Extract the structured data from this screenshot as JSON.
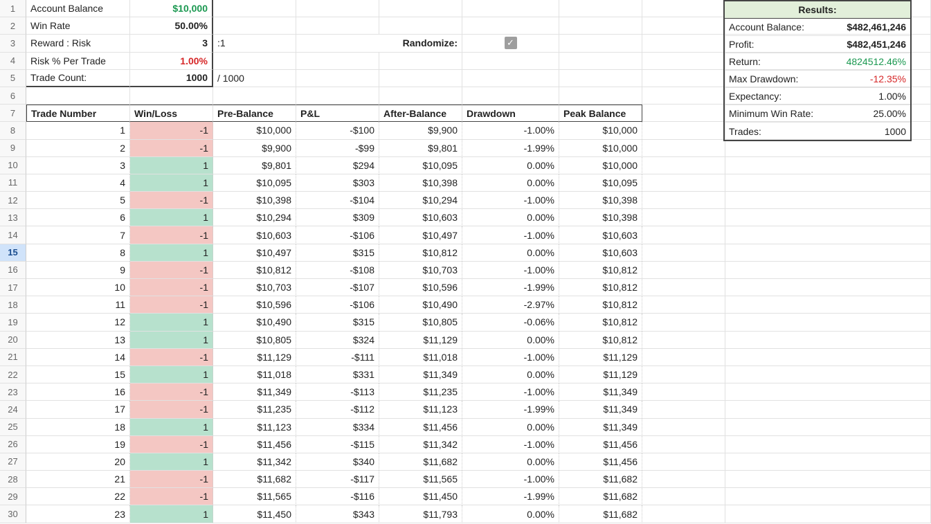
{
  "colors": {
    "win_bg": "#b7e1cd",
    "loss_bg": "#f4c7c3",
    "green_text": "#1a9850",
    "red_text": "#d62728",
    "results_header_bg": "#e2efda",
    "grid_border": "#e1e1e1",
    "strong_border": "#444444",
    "rowhead_bg": "#f8f8f8",
    "selected_row_bg": "#d0e3fa"
  },
  "params": {
    "rows": [
      {
        "n": 1,
        "label": "Account Balance",
        "value": "$10,000",
        "value_color": "green",
        "bold": true
      },
      {
        "n": 2,
        "label": "Win Rate",
        "value": "50.00%",
        "bold": true
      },
      {
        "n": 3,
        "label": "Reward : Risk",
        "value": "3",
        "suffix": ":1",
        "bold": true
      },
      {
        "n": 4,
        "label": "Risk % Per Trade",
        "value": "1.00%",
        "value_color": "red",
        "bold": true
      },
      {
        "n": 5,
        "label": "Trade Count:",
        "value": "1000",
        "suffix": "/ 1000",
        "bold": true
      }
    ],
    "randomize_label": "Randomize:",
    "randomize_checked": true
  },
  "blank_row": 6,
  "table": {
    "header_row": 7,
    "columns": [
      "Trade Number",
      "Win/Loss",
      "Pre-Balance",
      "P&L",
      "After-Balance",
      "Drawdown",
      "Peak Balance"
    ],
    "selected_sheet_row": 15,
    "rows": [
      {
        "sr": 8,
        "n": 1,
        "wl": -1,
        "pre": "$10,000",
        "pl": "-$100",
        "after": "$9,900",
        "dd": "-1.00%",
        "peak": "$10,000"
      },
      {
        "sr": 9,
        "n": 2,
        "wl": -1,
        "pre": "$9,900",
        "pl": "-$99",
        "after": "$9,801",
        "dd": "-1.99%",
        "peak": "$10,000"
      },
      {
        "sr": 10,
        "n": 3,
        "wl": 1,
        "pre": "$9,801",
        "pl": "$294",
        "after": "$10,095",
        "dd": "0.00%",
        "peak": "$10,000"
      },
      {
        "sr": 11,
        "n": 4,
        "wl": 1,
        "pre": "$10,095",
        "pl": "$303",
        "after": "$10,398",
        "dd": "0.00%",
        "peak": "$10,095"
      },
      {
        "sr": 12,
        "n": 5,
        "wl": -1,
        "pre": "$10,398",
        "pl": "-$104",
        "after": "$10,294",
        "dd": "-1.00%",
        "peak": "$10,398"
      },
      {
        "sr": 13,
        "n": 6,
        "wl": 1,
        "pre": "$10,294",
        "pl": "$309",
        "after": "$10,603",
        "dd": "0.00%",
        "peak": "$10,398"
      },
      {
        "sr": 14,
        "n": 7,
        "wl": -1,
        "pre": "$10,603",
        "pl": "-$106",
        "after": "$10,497",
        "dd": "-1.00%",
        "peak": "$10,603"
      },
      {
        "sr": 15,
        "n": 8,
        "wl": 1,
        "pre": "$10,497",
        "pl": "$315",
        "after": "$10,812",
        "dd": "0.00%",
        "peak": "$10,603"
      },
      {
        "sr": 16,
        "n": 9,
        "wl": -1,
        "pre": "$10,812",
        "pl": "-$108",
        "after": "$10,703",
        "dd": "-1.00%",
        "peak": "$10,812"
      },
      {
        "sr": 17,
        "n": 10,
        "wl": -1,
        "pre": "$10,703",
        "pl": "-$107",
        "after": "$10,596",
        "dd": "-1.99%",
        "peak": "$10,812"
      },
      {
        "sr": 18,
        "n": 11,
        "wl": -1,
        "pre": "$10,596",
        "pl": "-$106",
        "after": "$10,490",
        "dd": "-2.97%",
        "peak": "$10,812"
      },
      {
        "sr": 19,
        "n": 12,
        "wl": 1,
        "pre": "$10,490",
        "pl": "$315",
        "after": "$10,805",
        "dd": "-0.06%",
        "peak": "$10,812"
      },
      {
        "sr": 20,
        "n": 13,
        "wl": 1,
        "pre": "$10,805",
        "pl": "$324",
        "after": "$11,129",
        "dd": "0.00%",
        "peak": "$10,812"
      },
      {
        "sr": 21,
        "n": 14,
        "wl": -1,
        "pre": "$11,129",
        "pl": "-$111",
        "after": "$11,018",
        "dd": "-1.00%",
        "peak": "$11,129"
      },
      {
        "sr": 22,
        "n": 15,
        "wl": 1,
        "pre": "$11,018",
        "pl": "$331",
        "after": "$11,349",
        "dd": "0.00%",
        "peak": "$11,129"
      },
      {
        "sr": 23,
        "n": 16,
        "wl": -1,
        "pre": "$11,349",
        "pl": "-$113",
        "after": "$11,235",
        "dd": "-1.00%",
        "peak": "$11,349"
      },
      {
        "sr": 24,
        "n": 17,
        "wl": -1,
        "pre": "$11,235",
        "pl": "-$112",
        "after": "$11,123",
        "dd": "-1.99%",
        "peak": "$11,349"
      },
      {
        "sr": 25,
        "n": 18,
        "wl": 1,
        "pre": "$11,123",
        "pl": "$334",
        "after": "$11,456",
        "dd": "0.00%",
        "peak": "$11,349"
      },
      {
        "sr": 26,
        "n": 19,
        "wl": -1,
        "pre": "$11,456",
        "pl": "-$115",
        "after": "$11,342",
        "dd": "-1.00%",
        "peak": "$11,456"
      },
      {
        "sr": 27,
        "n": 20,
        "wl": 1,
        "pre": "$11,342",
        "pl": "$340",
        "after": "$11,682",
        "dd": "0.00%",
        "peak": "$11,456"
      },
      {
        "sr": 28,
        "n": 21,
        "wl": -1,
        "pre": "$11,682",
        "pl": "-$117",
        "after": "$11,565",
        "dd": "-1.00%",
        "peak": "$11,682"
      },
      {
        "sr": 29,
        "n": 22,
        "wl": -1,
        "pre": "$11,565",
        "pl": "-$116",
        "after": "$11,450",
        "dd": "-1.99%",
        "peak": "$11,682"
      },
      {
        "sr": 30,
        "n": 23,
        "wl": 1,
        "pre": "$11,450",
        "pl": "$343",
        "after": "$11,793",
        "dd": "0.00%",
        "peak": "$11,682"
      }
    ]
  },
  "results": {
    "title": "Results:",
    "rows": [
      {
        "label": "Account Balance:",
        "value": "$482,461,246",
        "bold": true
      },
      {
        "label": "Profit:",
        "value": "$482,451,246",
        "bold": true
      },
      {
        "label": "Return:",
        "value": "4824512.46%",
        "color": "green"
      },
      {
        "label": "Max Drawdown:",
        "value": "-12.35%",
        "color": "red"
      },
      {
        "label": "Expectancy:",
        "value": "1.00%"
      },
      {
        "label": "Minimum Win Rate:",
        "value": "25.00%"
      },
      {
        "label": "Trades:",
        "value": "1000"
      }
    ]
  }
}
